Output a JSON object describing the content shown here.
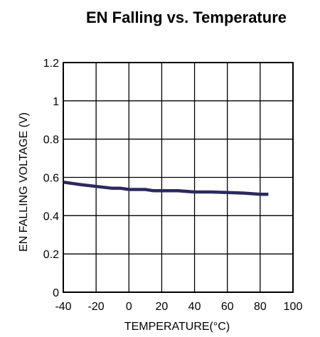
{
  "chart_data": {
    "type": "line",
    "title": "EN Falling vs. Temperature",
    "xlabel": "TEMPERATURE(°C)",
    "ylabel": "EN FALLING VOLTAGE (V)",
    "xlim": [
      -40,
      100
    ],
    "ylim": [
      0,
      1.2
    ],
    "x_ticks": [
      -40,
      -20,
      0,
      20,
      40,
      60,
      80,
      100
    ],
    "x_tick_labels": [
      "-40",
      "-20",
      "0",
      "20",
      "40",
      "60",
      "80",
      "100"
    ],
    "y_ticks": [
      0,
      0.2,
      0.4,
      0.6,
      0.8,
      1.0,
      1.2
    ],
    "y_tick_labels": [
      "0",
      "0.2",
      "0.4",
      "0.6",
      "0.8",
      "1",
      "1.2"
    ],
    "grid": true,
    "series": [
      {
        "x": [
          -40,
          -30,
          -20,
          -10,
          -5,
          0,
          10,
          15,
          20,
          30,
          40,
          50,
          60,
          70,
          80,
          85
        ],
        "y": [
          0.575,
          0.563,
          0.553,
          0.543,
          0.543,
          0.537,
          0.537,
          0.53,
          0.53,
          0.53,
          0.524,
          0.524,
          0.521,
          0.518,
          0.512,
          0.512
        ],
        "color": "#2a2a5e"
      }
    ]
  }
}
